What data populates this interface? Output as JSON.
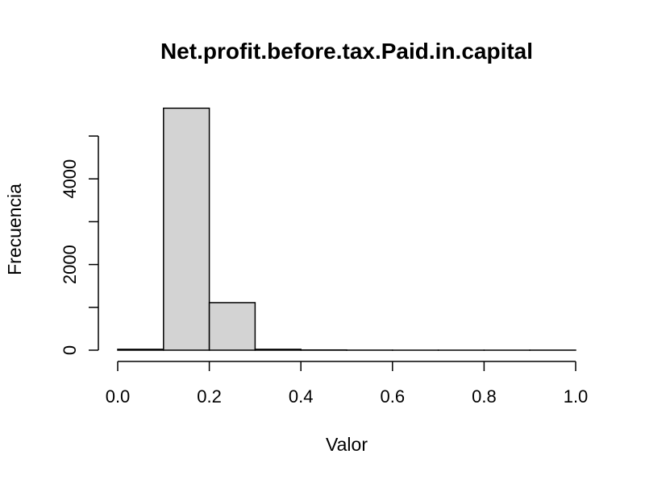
{
  "chart_data": {
    "type": "bar",
    "title": "Net.profit.before.tax.Paid.in.capital",
    "xlabel": "Valor",
    "ylabel": "Frecuencia",
    "bins": [
      {
        "start": 0.0,
        "end": 0.1,
        "count": 20
      },
      {
        "start": 0.1,
        "end": 0.2,
        "count": 5650
      },
      {
        "start": 0.2,
        "end": 0.3,
        "count": 1110
      },
      {
        "start": 0.3,
        "end": 0.4,
        "count": 20
      },
      {
        "start": 0.4,
        "end": 0.5,
        "count": 5
      },
      {
        "start": 0.5,
        "end": 0.6,
        "count": 1
      },
      {
        "start": 0.6,
        "end": 0.7,
        "count": 0
      },
      {
        "start": 0.7,
        "end": 0.8,
        "count": 0
      },
      {
        "start": 0.8,
        "end": 0.9,
        "count": 0
      },
      {
        "start": 0.9,
        "end": 1.0,
        "count": 1
      }
    ],
    "xlim": [
      0,
      1
    ],
    "ylim": [
      0,
      5000
    ],
    "x_ticks": [
      "0.0",
      "0.2",
      "0.4",
      "0.6",
      "0.8",
      "1.0"
    ],
    "y_ticks": [
      "0",
      "2000",
      "4000"
    ],
    "bar_color": "#d3d3d3",
    "grid": false
  }
}
